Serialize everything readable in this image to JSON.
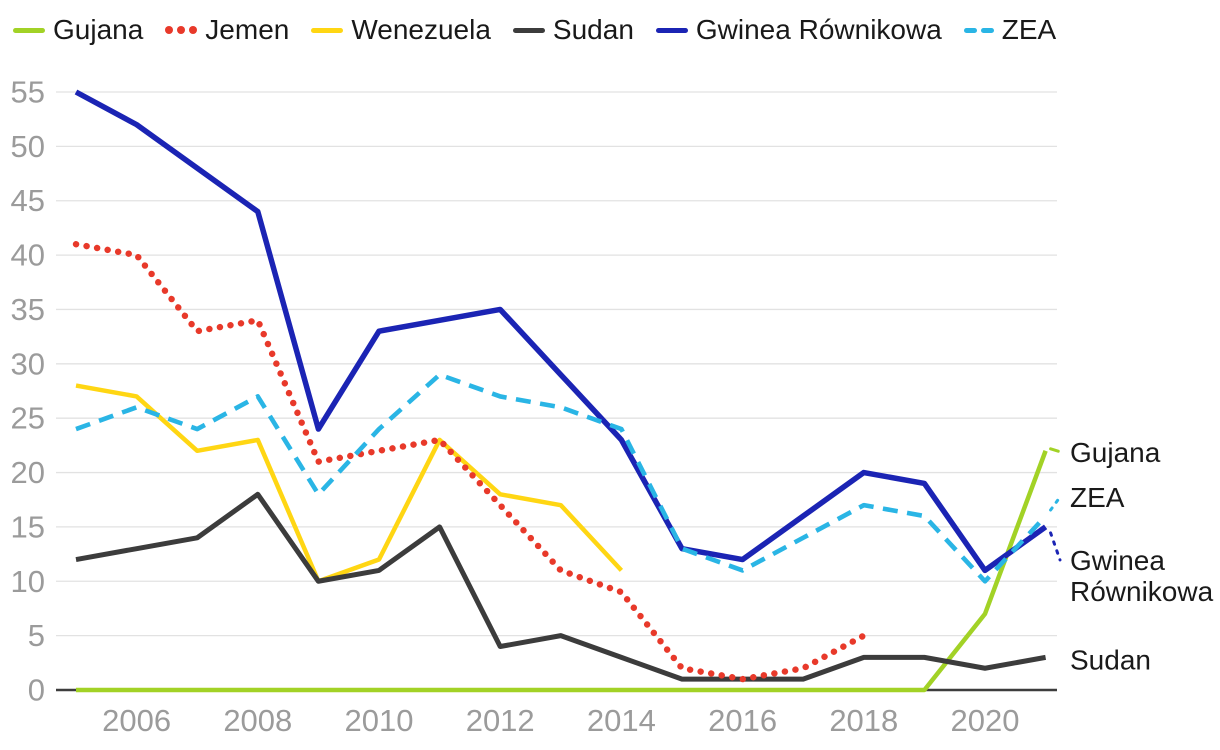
{
  "chart_data": {
    "type": "line",
    "title": "",
    "xlabel": "",
    "ylabel": "",
    "x": [
      2005,
      2006,
      2007,
      2008,
      2009,
      2010,
      2011,
      2012,
      2013,
      2014,
      2015,
      2016,
      2017,
      2018,
      2019,
      2020,
      2021
    ],
    "xticks": [
      2006,
      2008,
      2010,
      2012,
      2014,
      2016,
      2018,
      2020
    ],
    "yticks": [
      0,
      5,
      10,
      15,
      20,
      25,
      30,
      35,
      40,
      45,
      50,
      55
    ],
    "ylim": [
      0,
      55
    ],
    "grid": "horizontal",
    "legend_position": "top",
    "series": [
      {
        "name": "Gujana",
        "color": "#a2d226",
        "style": "solid",
        "values": [
          0,
          0,
          0,
          0,
          0,
          0,
          0,
          0,
          0,
          0,
          0,
          0,
          0,
          0,
          0,
          7,
          22
        ],
        "end_label": "Gujana"
      },
      {
        "name": "Jemen",
        "color": "#e8392a",
        "style": "dotted",
        "values": [
          41,
          40,
          33,
          34,
          21,
          22,
          23,
          17,
          11,
          9,
          2,
          1,
          2,
          5
        ]
      },
      {
        "name": "Wenezuela",
        "color": "#ffd613",
        "style": "solid",
        "values": [
          28,
          27,
          22,
          23,
          10,
          12,
          23,
          18,
          17,
          11
        ]
      },
      {
        "name": "Sudan",
        "color": "#3c3c3c",
        "style": "solid",
        "values": [
          12,
          13,
          14,
          18,
          10,
          11,
          15,
          4,
          5,
          3,
          1,
          1,
          1,
          3,
          3,
          2,
          3
        ],
        "end_label": "Sudan"
      },
      {
        "name": "Gwinea Równikowa",
        "color": "#1b24b4",
        "style": "solid",
        "values": [
          55,
          52,
          48,
          44,
          24,
          33,
          34,
          35,
          29,
          23,
          13,
          12,
          16,
          20,
          19,
          11,
          15
        ],
        "end_label": "Gwinea Równikowa"
      },
      {
        "name": "ZEA",
        "color": "#2ab5e5",
        "style": "dashed",
        "values": [
          24,
          26,
          24,
          27,
          18,
          24,
          29,
          27,
          26,
          24,
          13,
          11,
          14,
          17,
          16,
          10,
          16
        ],
        "end_label": "ZEA"
      }
    ],
    "axis_text_color": "#9b9b9b",
    "label_text_color": "#1a1a1a"
  }
}
